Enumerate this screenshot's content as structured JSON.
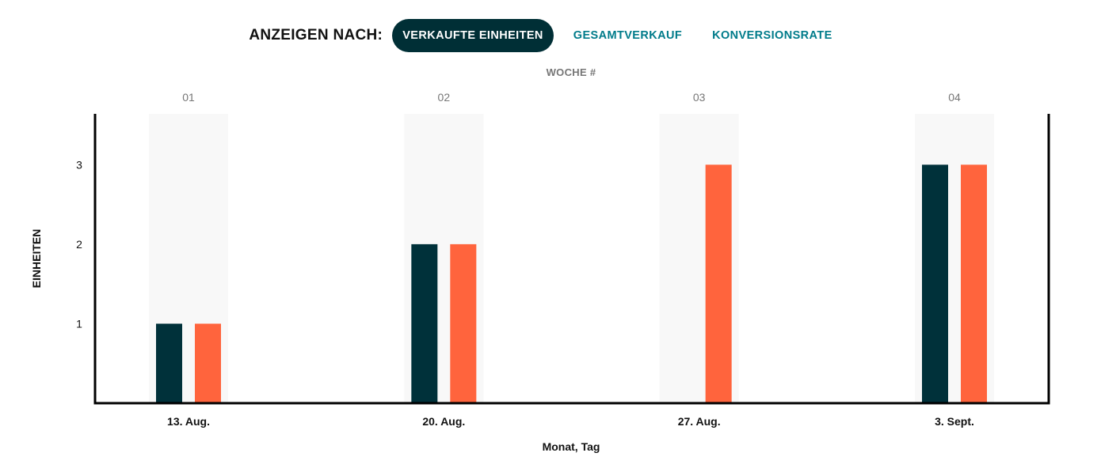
{
  "toolbar": {
    "label": "ANZEIGEN NACH:",
    "tabs": [
      {
        "label": "VERKAUFTE EINHEITEN",
        "active": true
      },
      {
        "label": "GESAMTVERKAUF",
        "active": false
      },
      {
        "label": "KONVERSIONSRATE",
        "active": false
      }
    ]
  },
  "colors": {
    "series_dark": "#00313a",
    "series_orange": "#ff643d",
    "tab_active_bg": "#002f36",
    "tab_text": "#007b8a",
    "band": "#f8f8f8"
  },
  "chart_data": {
    "type": "bar",
    "top_axis_title": "WOCHE #",
    "week_numbers": [
      "01",
      "02",
      "03",
      "04"
    ],
    "categories": [
      "13. Aug.",
      "20. Aug.",
      "27. Aug.",
      "3. Sept."
    ],
    "series": [
      {
        "values": [
          1,
          2,
          0,
          3
        ],
        "color": "#00313a"
      },
      {
        "values": [
          1,
          2,
          3,
          3
        ],
        "color": "#ff643d"
      }
    ],
    "xlabel": "Monat, Tag",
    "ylabel": "EINHEITEN",
    "yticks": [
      1,
      2,
      3
    ],
    "ylim": [
      0,
      3.64
    ],
    "grid": false
  }
}
